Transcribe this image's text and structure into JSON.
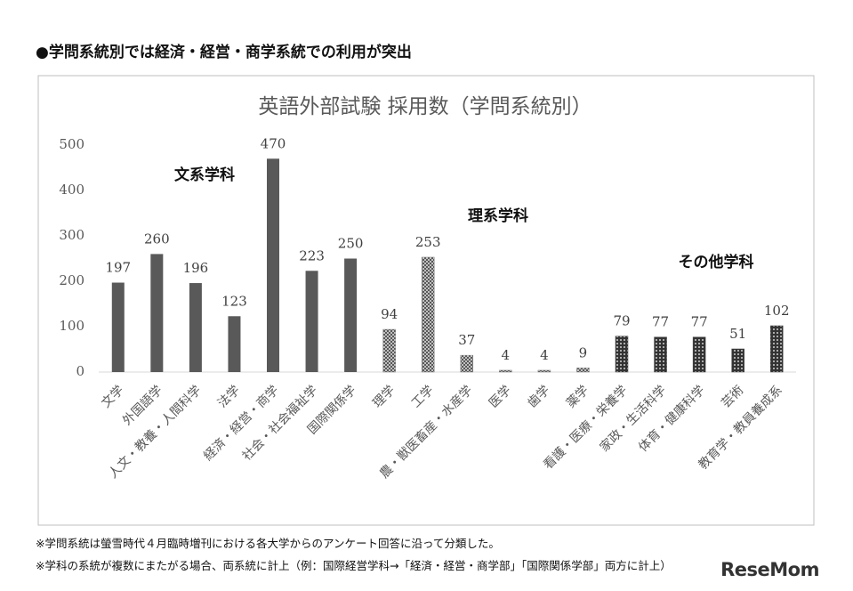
{
  "heading": "●学問系統別では経済・経営・商学系統での利用が突出",
  "chart_data": {
    "type": "bar",
    "title": "英語外部試験 採用数（学問系統別）",
    "categories": [
      "文学",
      "外国語学",
      "人文・教養・人間科学",
      "法学",
      "経済・経営・商学",
      "社会・社会福祉学",
      "国際関係学",
      "理学",
      "工学",
      "農・獣医畜産・水産学",
      "医学",
      "歯学",
      "薬学",
      "看護・医療・栄養学",
      "家政・生活科学",
      "体育・健康科学",
      "芸術",
      "教育学・教員養成系"
    ],
    "series": [
      {
        "name": "文系学科",
        "color": "#595959",
        "pattern": "solid",
        "values": [
          197,
          260,
          196,
          123,
          470,
          223,
          250,
          null,
          null,
          null,
          null,
          null,
          null,
          null,
          null,
          null,
          null,
          null
        ]
      },
      {
        "name": "理系学科",
        "color": "#7f7f7f",
        "pattern": "crosshatch",
        "values": [
          null,
          null,
          null,
          null,
          null,
          null,
          null,
          94,
          253,
          37,
          4,
          4,
          9,
          null,
          null,
          null,
          null,
          null
        ]
      },
      {
        "name": "その他学科",
        "color": "#404040",
        "pattern": "dots",
        "values": [
          null,
          null,
          null,
          null,
          null,
          null,
          null,
          null,
          null,
          null,
          null,
          null,
          null,
          79,
          77,
          77,
          51,
          102
        ]
      }
    ],
    "ylim": [
      0,
      500
    ],
    "yticks": [
      0,
      100,
      200,
      300,
      400,
      500
    ],
    "grid": false
  },
  "notes": [
    "※学問系統は螢雪時代４月臨時増刊における各大学からのアンケート回答に沿って分類した。",
    "※学科の系統が複数にまたがる場合、両系統に計上（例：国際経営学科→「経済・経営・商学部」「国際関係学部」両方に計上）"
  ],
  "logo": "ReseMom"
}
